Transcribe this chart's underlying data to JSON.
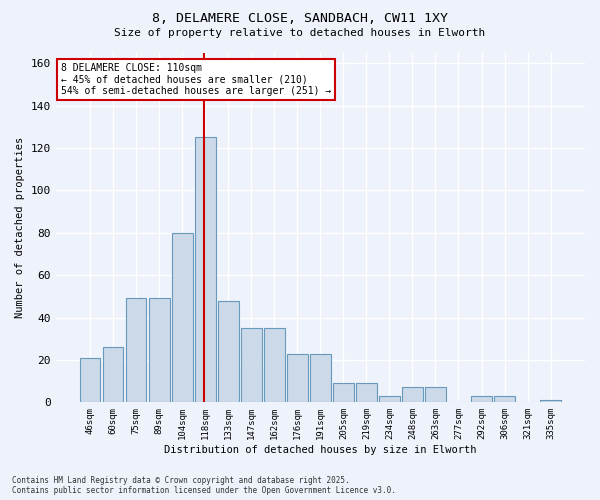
{
  "title_line1": "8, DELAMERE CLOSE, SANDBACH, CW11 1XY",
  "title_line2": "Size of property relative to detached houses in Elworth",
  "xlabel": "Distribution of detached houses by size in Elworth",
  "ylabel": "Number of detached properties",
  "categories": [
    "46sqm",
    "60sqm",
    "75sqm",
    "89sqm",
    "104sqm",
    "118sqm",
    "133sqm",
    "147sqm",
    "162sqm",
    "176sqm",
    "191sqm",
    "205sqm",
    "219sqm",
    "234sqm",
    "248sqm",
    "263sqm",
    "277sqm",
    "292sqm",
    "306sqm",
    "321sqm",
    "335sqm"
  ],
  "values": [
    21,
    26,
    49,
    49,
    80,
    125,
    48,
    35,
    35,
    23,
    23,
    9,
    9,
    3,
    7,
    7,
    0,
    3,
    3,
    0,
    1
  ],
  "bar_color": "#ccd9e8",
  "bar_edge_color": "#6699bb",
  "background_color": "#eef2fb",
  "grid_color": "#ffffff",
  "annotation_box_text": "8 DELAMERE CLOSE: 110sqm\n← 45% of detached houses are smaller (210)\n54% of semi-detached houses are larger (251) →",
  "annotation_box_color": "#ffffff",
  "annotation_box_edge_color": "#cc0000",
  "redline_x": 4.93,
  "ylim": [
    0,
    165
  ],
  "yticks": [
    0,
    20,
    40,
    60,
    80,
    100,
    120,
    140,
    160
  ],
  "footer_line1": "Contains HM Land Registry data © Crown copyright and database right 2025.",
  "footer_line2": "Contains public sector information licensed under the Open Government Licence v3.0."
}
